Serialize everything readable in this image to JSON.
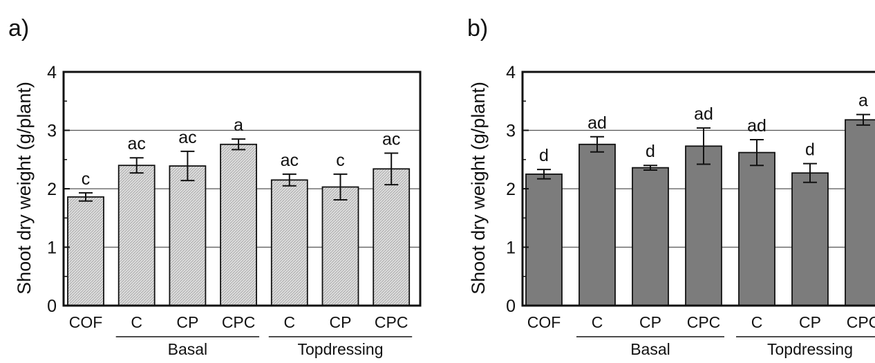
{
  "chart_data": [
    {
      "type": "bar",
      "panel_label": "a)",
      "ylabel": "Shoot dry weight (g/plant)",
      "ylim": [
        0,
        4
      ],
      "yticks": [
        0,
        1,
        2,
        3,
        4
      ],
      "grid": "horizontal lines at 1, 2, 3",
      "bar_color": "#d6d6d6",
      "bar_pattern": "fine hatch",
      "categories": [
        "COF",
        "C",
        "CP",
        "CPC",
        "C",
        "CP",
        "CPC"
      ],
      "values": [
        1.86,
        2.4,
        2.39,
        2.76,
        2.15,
        2.03,
        2.34
      ],
      "errors": [
        0.07,
        0.13,
        0.25,
        0.09,
        0.1,
        0.22,
        0.27
      ],
      "significance": [
        "c",
        "ac",
        "ac",
        "a",
        "ac",
        "c",
        "ac"
      ],
      "groups": [
        {
          "label": "Basal",
          "from": 1,
          "to": 3
        },
        {
          "label": "Topdressing",
          "from": 4,
          "to": 6
        }
      ]
    },
    {
      "type": "bar",
      "panel_label": "b)",
      "ylabel": "Shoot dry weight (g/plant)",
      "ylim": [
        0,
        4
      ],
      "yticks": [
        0,
        1,
        2,
        3,
        4
      ],
      "grid": "horizontal lines at 1, 2, 3",
      "bar_color": "#7c7c7c",
      "categories": [
        "COF",
        "C",
        "CP",
        "CPC",
        "C",
        "CP",
        "CPC"
      ],
      "values": [
        2.25,
        2.76,
        2.36,
        2.73,
        2.62,
        2.27,
        3.18
      ],
      "errors": [
        0.08,
        0.13,
        0.04,
        0.31,
        0.22,
        0.16,
        0.09
      ],
      "significance": [
        "d",
        "ad",
        "d",
        "ad",
        "ad",
        "d",
        "a"
      ],
      "groups": [
        {
          "label": "Basal",
          "from": 1,
          "to": 3
        },
        {
          "label": "Topdressing",
          "from": 4,
          "to": 6
        }
      ]
    }
  ]
}
